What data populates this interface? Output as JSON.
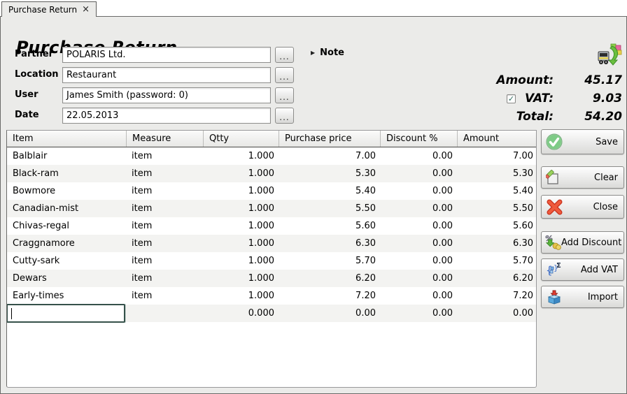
{
  "tab": {
    "label": "Purchase Return",
    "close_glyph": "×"
  },
  "header": {
    "title": "Purchase Return",
    "icon": "purchase-return-truck-icon"
  },
  "form": {
    "browse_label": "...",
    "fields": [
      {
        "label": "Partner",
        "value": "POLARIS Ltd."
      },
      {
        "label": "Location",
        "value": "Restaurant"
      },
      {
        "label": "User",
        "value": "James Smith (password: 0)"
      },
      {
        "label": "Date",
        "value": "22.05.2013"
      }
    ],
    "note": {
      "expander_glyph": "▶",
      "label": "Note"
    }
  },
  "totals": {
    "amount_label": "Amount:",
    "amount_value": "45.17",
    "vat_label": "VAT:",
    "vat_value": "9.03",
    "vat_checkbox_checked": true,
    "vat_check_glyph": "✓",
    "total_label": "Total:",
    "total_value": "54.20"
  },
  "table": {
    "columns": [
      "Item",
      "Measure",
      "Qtty",
      "Purchase price",
      "Discount %",
      "Amount"
    ],
    "rows": [
      [
        "Balblair",
        "item",
        "1.000",
        "7.00",
        "0.00",
        "7.00"
      ],
      [
        "Black-ram",
        "item",
        "1.000",
        "5.30",
        "0.00",
        "5.30"
      ],
      [
        "Bowmore",
        "item",
        "1.000",
        "5.40",
        "0.00",
        "5.40"
      ],
      [
        "Canadian-mist",
        "item",
        "1.000",
        "5.50",
        "0.00",
        "5.50"
      ],
      [
        "Chivas-regal",
        "item",
        "1.000",
        "5.60",
        "0.00",
        "5.60"
      ],
      [
        "Craggnamore",
        "item",
        "1.000",
        "6.30",
        "0.00",
        "6.30"
      ],
      [
        "Cutty-sark",
        "item",
        "1.000",
        "5.70",
        "0.00",
        "5.70"
      ],
      [
        "Dewars",
        "item",
        "1.000",
        "6.20",
        "0.00",
        "6.20"
      ],
      [
        "Early-times",
        "item",
        "1.000",
        "7.20",
        "0.00",
        "7.20"
      ]
    ],
    "new_row": {
      "item_value": "",
      "measure": "",
      "qtty": "0.000",
      "purchase_price": "0.00",
      "discount": "0.00",
      "amount": "0.00"
    }
  },
  "actions": [
    {
      "label": "Save",
      "icon": "save-check-icon"
    },
    {
      "label": "Clear",
      "icon": "clear-eraser-icon"
    },
    {
      "label": "Close",
      "icon": "close-x-icon"
    },
    {
      "label": "Add Discount",
      "icon": "add-discount-icon"
    },
    {
      "label": "Add VAT",
      "icon": "add-vat-icon"
    },
    {
      "label": "Import",
      "icon": "import-box-icon"
    }
  ],
  "colors": {
    "save_green": "#46a94e",
    "close_red": "#e2402c",
    "import_blue": "#4a9fd8",
    "discount_green": "#58b23a",
    "coin_gold": "#e3c24a",
    "vat_blue": "#3a6bc8",
    "check_teal": "#2d6b5f",
    "panel_bg": "#ebebe9"
  }
}
